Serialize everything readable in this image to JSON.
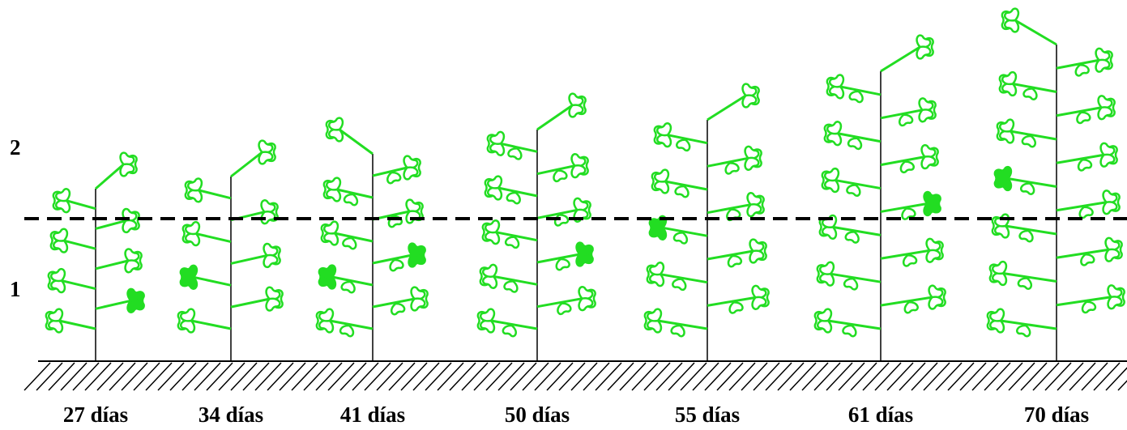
{
  "zone_labels": [
    "2",
    "1"
  ],
  "plants": [
    {
      "label": "27 días"
    },
    {
      "label": "34 días"
    },
    {
      "label": "41 días"
    },
    {
      "label": "50 días"
    },
    {
      "label": "55 días"
    },
    {
      "label": "61 días"
    },
    {
      "label": "70 días"
    }
  ]
}
